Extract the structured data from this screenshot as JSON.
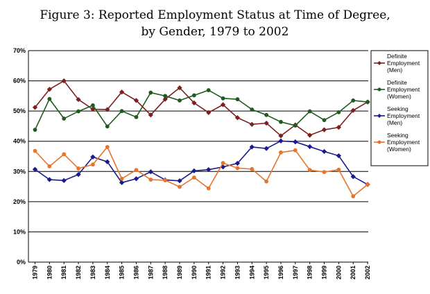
{
  "chart_data": {
    "type": "line",
    "title_lines": [
      "Figure 3: Reported Employment Status at Time of Degree,",
      "by Gender, 1979 to 2002"
    ],
    "xlabel": "",
    "ylabel": "",
    "ylim": [
      0,
      70
    ],
    "y_ticks": [
      "0%",
      "10%",
      "20%",
      "30%",
      "40%",
      "50%",
      "60%",
      "70%"
    ],
    "grid": true,
    "legend_position": "right",
    "categories": [
      "1979",
      "1980",
      "1981",
      "1982",
      "1983",
      "1984",
      "1985",
      "1986",
      "1987",
      "1988",
      "1989",
      "1990",
      "1991",
      "1992",
      "1993",
      "1994",
      "1995",
      "1996",
      "1997",
      "1998",
      "1999",
      "2000",
      "2001",
      "2002"
    ],
    "series": [
      {
        "name": "Definite Employment (Men)",
        "legend_lines": [
          "Definite",
          "Employment",
          "(Men)"
        ],
        "color": "#7b1f1f",
        "marker": "diamond",
        "values": [
          51.2,
          57.2,
          60.0,
          53.8,
          50.6,
          50.5,
          56.3,
          53.5,
          48.7,
          53.9,
          57.7,
          52.7,
          49.5,
          52.1,
          47.8,
          45.6,
          46.0,
          41.8,
          45.4,
          42.0,
          43.8,
          44.6,
          50.2,
          53.0
        ]
      },
      {
        "name": "Definite Employment (Women)",
        "legend_lines": [
          "Definite",
          "Employment",
          "(Women)"
        ],
        "color": "#1f5a1f",
        "marker": "circle",
        "values": [
          43.8,
          54.0,
          47.5,
          49.9,
          51.9,
          44.9,
          50.0,
          48.0,
          56.1,
          55.0,
          53.5,
          55.2,
          56.9,
          54.2,
          53.9,
          50.5,
          48.7,
          46.4,
          45.2,
          49.9,
          47.0,
          49.6,
          53.5,
          53.0
        ]
      },
      {
        "name": "Seeking Employment (Men)",
        "legend_lines": [
          "Seeking",
          "Employment",
          "(Men)"
        ],
        "color": "#1a1a8c",
        "marker": "diamond",
        "values": [
          30.7,
          27.3,
          27.0,
          29.0,
          34.8,
          33.2,
          26.3,
          27.6,
          29.9,
          27.2,
          26.9,
          30.2,
          30.6,
          31.5,
          32.7,
          38.1,
          37.6,
          40.1,
          39.8,
          38.2,
          36.6,
          35.2,
          28.3,
          25.7
        ]
      },
      {
        "name": "Seeking Employment (Women)",
        "legend_lines": [
          "Seeking",
          "Employment",
          "(Women)"
        ],
        "color": "#e8742c",
        "marker": "circle",
        "values": [
          36.8,
          31.7,
          35.7,
          31.0,
          32.3,
          38.1,
          27.6,
          30.5,
          27.3,
          27.1,
          24.9,
          28.0,
          24.4,
          32.8,
          31.1,
          30.8,
          26.7,
          36.3,
          37.0,
          30.5,
          29.8,
          30.6,
          21.8,
          25.7
        ]
      }
    ]
  }
}
